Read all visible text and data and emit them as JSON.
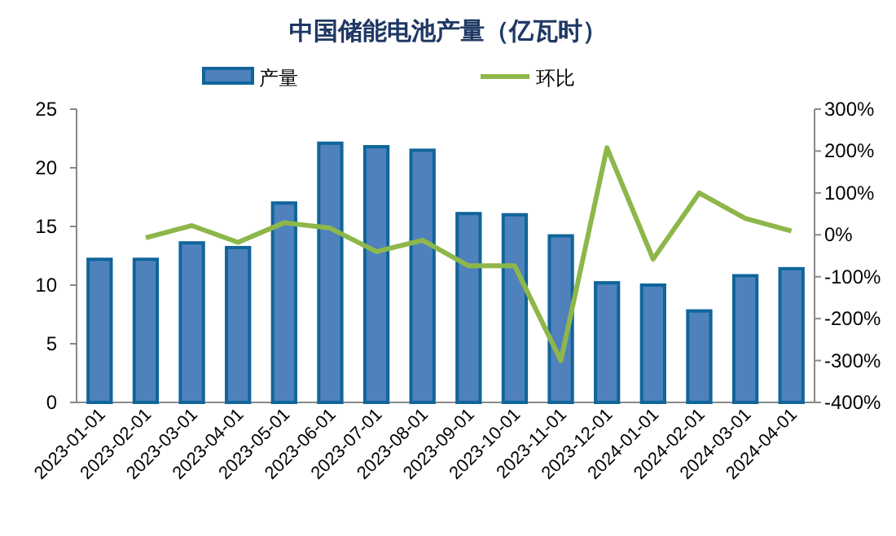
{
  "chart_data": {
    "type": "bar",
    "title": "中国储能电池产量（亿瓦时）",
    "categories": [
      "2023-01-01",
      "2023-02-01",
      "2023-03-01",
      "2023-04-01",
      "2023-05-01",
      "2023-06-01",
      "2023-07-01",
      "2023-08-01",
      "2023-09-01",
      "2023-10-01",
      "2023-11-01",
      "2023-12-01",
      "2024-01-01",
      "2024-02-01",
      "2024-03-01",
      "2024-04-01"
    ],
    "series": [
      {
        "name": "产量",
        "color": "#4f81bd",
        "values": [
          12.2,
          12.2,
          13.6,
          13.2,
          17.0,
          22.1,
          21.8,
          21.5,
          16.1,
          16.0,
          14.2,
          10.2,
          10.0,
          7.8,
          10.8,
          11.4
        ]
      },
      {
        "name": "环比",
        "type": "line",
        "axis": "y2",
        "color": "#8db74a",
        "values": [
          null,
          -7,
          22,
          -18,
          29,
          16,
          -40,
          -13,
          -74,
          -74,
          -300,
          208,
          -58,
          100,
          39,
          9
        ]
      }
    ],
    "ylim": [
      0,
      25
    ],
    "yticks": [
      0,
      5,
      10,
      15,
      20,
      25
    ],
    "y2lim": [
      -400,
      300
    ],
    "y2ticks": [
      {
        "value": -400,
        "label": "-400%"
      },
      {
        "value": -300,
        "label": "-300%"
      },
      {
        "value": -200,
        "label": "-200%"
      },
      {
        "value": -100,
        "label": "-100%"
      },
      {
        "value": 0,
        "label": "0%"
      },
      {
        "value": 100,
        "label": "100%"
      },
      {
        "value": 200,
        "label": "200%"
      },
      {
        "value": 300,
        "label": "300%"
      }
    ],
    "legend": "top",
    "grid": false
  }
}
